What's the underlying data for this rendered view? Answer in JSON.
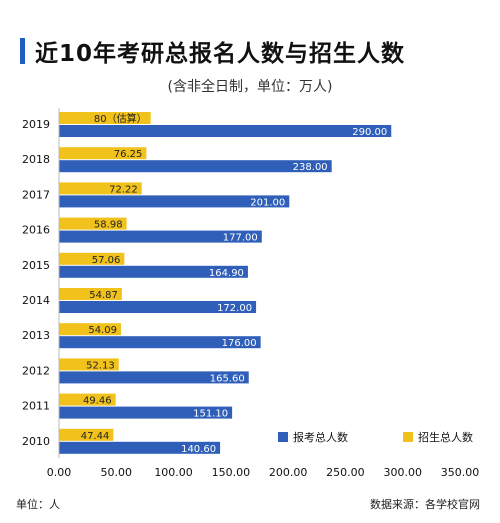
{
  "header": {
    "title": "近10年考研总报名人数与招生人数",
    "subtitle": "(含非全日制，单位：万人)"
  },
  "footer": {
    "unit": "单位：人",
    "source": "数据来源：各学校官网"
  },
  "colors": {
    "registrants": "#2f5fb8",
    "admissions": "#f2c21c",
    "title_accent": "#1f5fbf"
  },
  "chart_data": {
    "type": "bar",
    "orientation": "horizontal",
    "categories": [
      "2019",
      "2018",
      "2017",
      "2016",
      "2015",
      "2014",
      "2013",
      "2012",
      "2011",
      "2010"
    ],
    "series": [
      {
        "name": "报考总人数",
        "values": [
          290.0,
          238.0,
          201.0,
          177.0,
          164.9,
          172.0,
          176.0,
          165.6,
          151.1,
          140.6
        ],
        "labels": [
          "290.00",
          "238.00",
          "201.00",
          "177.00",
          "164.90",
          "172.00",
          "176.00",
          "165.60",
          "151.10",
          "140.60"
        ]
      },
      {
        "name": "招生总人数",
        "values": [
          80,
          76.25,
          72.22,
          58.98,
          57.06,
          54.87,
          54.09,
          52.13,
          49.46,
          47.44
        ],
        "labels": [
          "80（估算）",
          "76.25",
          "72.22",
          "58.98",
          "57.06",
          "54.87",
          "54.09",
          "52.13",
          "49.46",
          "47.44"
        ]
      }
    ],
    "xlim": [
      0,
      350
    ],
    "xticks": [
      "0.00",
      "50.00",
      "100.00",
      "150.00",
      "200.00",
      "250.00",
      "300.00",
      "350.00"
    ],
    "legend_position": "bottom-right",
    "grid": false
  }
}
